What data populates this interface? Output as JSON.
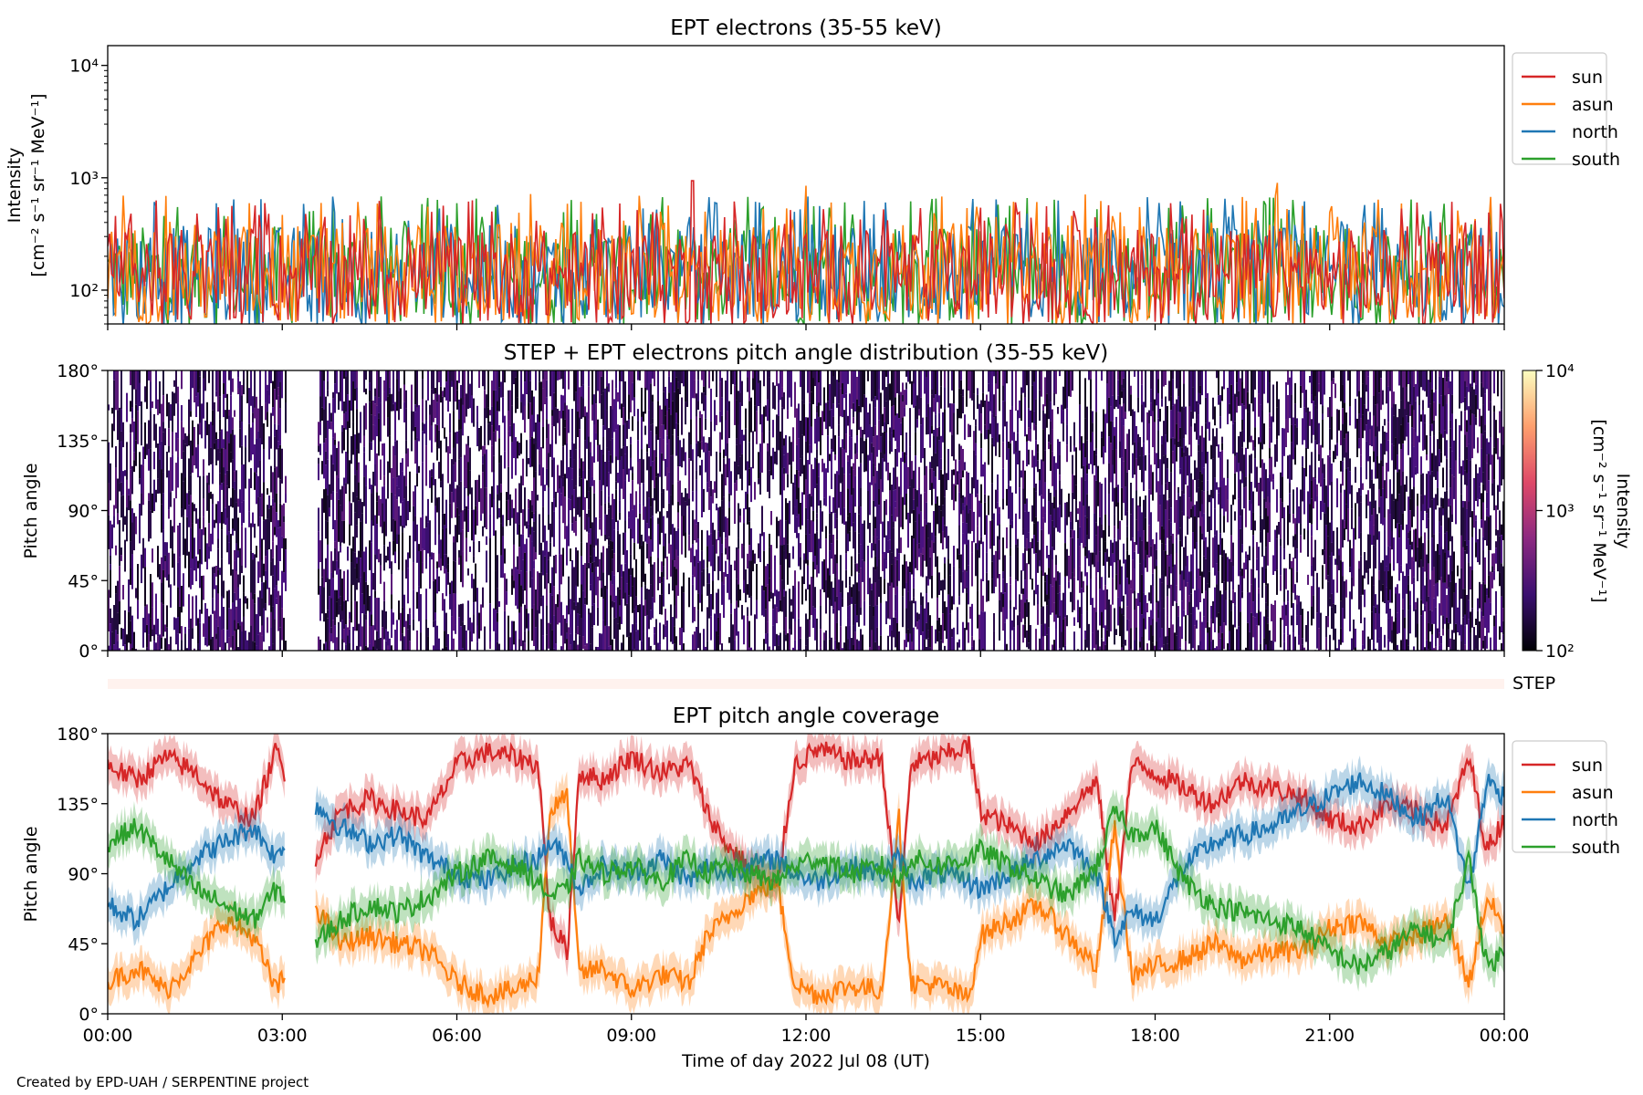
{
  "figure": {
    "credit": "Created by EPD-UAH / SERPENTINE project",
    "xlabel": "Time of day 2022 Jul 08 (UT)"
  },
  "chart_data": [
    {
      "type": "line",
      "title": "EPT electrons (35-55 keV)",
      "ylabel_line1": "Intensity",
      "ylabel_line2": "[cm⁻² s⁻¹ sr⁻¹ MeV⁻¹]",
      "yscale": "log",
      "ylim": [
        50,
        15000
      ],
      "yticks": [
        {
          "value": 100,
          "label": "10²"
        },
        {
          "value": 1000,
          "label": "10³"
        },
        {
          "value": 10000,
          "label": "10⁴"
        }
      ],
      "x_range_hours": [
        0,
        24
      ],
      "legend_position": "right, outside",
      "series": [
        {
          "name": "sun",
          "color": "#d62728",
          "typical": [
            80,
            350
          ],
          "spikes": [
            {
              "x": 10.05,
              "y": 940
            }
          ]
        },
        {
          "name": "asun",
          "color": "#ff7f0e",
          "typical": [
            80,
            400
          ],
          "spikes": [
            {
              "x": 12.0,
              "y": 850
            },
            {
              "x": 20.1,
              "y": 900
            }
          ]
        },
        {
          "name": "north",
          "color": "#1f77b4",
          "typical": [
            80,
            380
          ],
          "spikes": [
            {
              "x": 19.2,
              "y": 650
            }
          ]
        },
        {
          "name": "south",
          "color": "#2ca02c",
          "typical": [
            80,
            380
          ],
          "spikes": [
            {
              "x": 22.4,
              "y": 640
            }
          ]
        }
      ]
    },
    {
      "type": "heatmap",
      "title": "STEP + EPT electrons pitch angle distribution (35-55 keV)",
      "ylabel": "Pitch angle",
      "ylim": [
        0,
        180
      ],
      "yticks": [
        "0°",
        "45°",
        "90°",
        "135°",
        "180°"
      ],
      "colorbar": {
        "label": "Intensity",
        "units": "[cm⁻² s⁻¹ sr⁻¹ MeV⁻¹]",
        "scale": "log",
        "range": [
          100,
          10000
        ],
        "ticks": [
          "10²",
          "10³",
          "10⁴"
        ],
        "colormap": "inferno"
      },
      "data_gaps_hours": [
        [
          3.05,
          3.6
        ]
      ],
      "note": "most pixels dark purple, around 10² to 3·10²"
    },
    {
      "type": "bar",
      "label": "STEP",
      "note": "empty strip"
    },
    {
      "type": "line",
      "title": "EPT pitch angle coverage",
      "ylabel": "Pitch angle",
      "ylim": [
        0,
        180
      ],
      "yticks": [
        "0°",
        "45°",
        "90°",
        "135°",
        "180°"
      ],
      "xticks": [
        "00:00",
        "03:00",
        "06:00",
        "09:00",
        "12:00",
        "15:00",
        "18:00",
        "21:00",
        "00:00"
      ],
      "x_range_hours": [
        0,
        24
      ],
      "legend_position": "right, outside",
      "data_gaps_hours": [
        [
          3.05,
          3.55
        ]
      ],
      "series": [
        {
          "name": "sun",
          "color": "#d62728",
          "points": [
            [
              0,
              160
            ],
            [
              0.5,
              150
            ],
            [
              1,
              165
            ],
            [
              1.5,
              155
            ],
            [
              2,
              135
            ],
            [
              2.5,
              125
            ],
            [
              2.9,
              170
            ],
            [
              3.05,
              150
            ],
            [
              3.55,
              100
            ],
            [
              4,
              130
            ],
            [
              4.5,
              138
            ],
            [
              5,
              130
            ],
            [
              5.5,
              125
            ],
            [
              6,
              160
            ],
            [
              6.5,
              168
            ],
            [
              7,
              165
            ],
            [
              7.4,
              160
            ],
            [
              7.6,
              60
            ],
            [
              7.9,
              40
            ],
            [
              8.1,
              155
            ],
            [
              8.5,
              150
            ],
            [
              9,
              165
            ],
            [
              9.5,
              155
            ],
            [
              10,
              160
            ],
            [
              10.3,
              130
            ],
            [
              10.6,
              110
            ],
            [
              11,
              95
            ],
            [
              11.5,
              80
            ],
            [
              11.8,
              160
            ],
            [
              12.2,
              170
            ],
            [
              12.8,
              162
            ],
            [
              13.3,
              165
            ],
            [
              13.6,
              55
            ],
            [
              13.8,
              160
            ],
            [
              14.3,
              165
            ],
            [
              14.8,
              172
            ],
            [
              15,
              130
            ],
            [
              15.5,
              120
            ],
            [
              16,
              110
            ],
            [
              16.5,
              130
            ],
            [
              17,
              150
            ],
            [
              17.3,
              60
            ],
            [
              17.6,
              160
            ],
            [
              18,
              155
            ],
            [
              18.5,
              145
            ],
            [
              19,
              135
            ],
            [
              19.5,
              150
            ],
            [
              20,
              145
            ],
            [
              20.5,
              140
            ],
            [
              21,
              125
            ],
            [
              21.5,
              120
            ],
            [
              22,
              135
            ],
            [
              22.5,
              130
            ],
            [
              23,
              120
            ],
            [
              23.4,
              165
            ],
            [
              23.7,
              105
            ],
            [
              24,
              125
            ]
          ]
        },
        {
          "name": "asun",
          "color": "#ff7f0e",
          "points": [
            [
              0,
              20
            ],
            [
              0.5,
              30
            ],
            [
              1,
              15
            ],
            [
              1.5,
              35
            ],
            [
              2,
              60
            ],
            [
              2.5,
              50
            ],
            [
              2.9,
              15
            ],
            [
              3.05,
              25
            ],
            [
              3.55,
              70
            ],
            [
              4,
              45
            ],
            [
              4.5,
              50
            ],
            [
              5,
              45
            ],
            [
              5.5,
              40
            ],
            [
              6,
              20
            ],
            [
              6.5,
              12
            ],
            [
              7,
              15
            ],
            [
              7.4,
              25
            ],
            [
              7.6,
              130
            ],
            [
              7.9,
              140
            ],
            [
              8.1,
              25
            ],
            [
              8.5,
              30
            ],
            [
              9,
              15
            ],
            [
              9.5,
              25
            ],
            [
              10,
              20
            ],
            [
              10.3,
              50
            ],
            [
              10.6,
              60
            ],
            [
              11,
              75
            ],
            [
              11.5,
              85
            ],
            [
              11.8,
              20
            ],
            [
              12.2,
              12
            ],
            [
              12.8,
              18
            ],
            [
              13.3,
              15
            ],
            [
              13.6,
              125
            ],
            [
              13.8,
              20
            ],
            [
              14.3,
              18
            ],
            [
              14.8,
              10
            ],
            [
              15,
              50
            ],
            [
              15.5,
              60
            ],
            [
              16,
              70
            ],
            [
              16.5,
              50
            ],
            [
              17,
              30
            ],
            [
              17.3,
              120
            ],
            [
              17.6,
              25
            ],
            [
              18,
              30
            ],
            [
              18.5,
              35
            ],
            [
              19,
              45
            ],
            [
              19.5,
              35
            ],
            [
              20,
              40
            ],
            [
              20.5,
              40
            ],
            [
              21,
              55
            ],
            [
              21.5,
              60
            ],
            [
              22,
              45
            ],
            [
              22.5,
              50
            ],
            [
              23,
              60
            ],
            [
              23.4,
              20
            ],
            [
              23.7,
              75
            ],
            [
              24,
              55
            ]
          ]
        },
        {
          "name": "north",
          "color": "#1f77b4",
          "points": [
            [
              0,
              70
            ],
            [
              0.5,
              60
            ],
            [
              1,
              80
            ],
            [
              1.5,
              100
            ],
            [
              2,
              110
            ],
            [
              2.5,
              120
            ],
            [
              2.9,
              100
            ],
            [
              3.05,
              110
            ],
            [
              3.55,
              135
            ],
            [
              4,
              120
            ],
            [
              4.5,
              110
            ],
            [
              5,
              115
            ],
            [
              5.5,
              100
            ],
            [
              6,
              90
            ],
            [
              6.5,
              85
            ],
            [
              7,
              95
            ],
            [
              7.4,
              100
            ],
            [
              7.6,
              110
            ],
            [
              7.9,
              100
            ],
            [
              8.1,
              80
            ],
            [
              8.5,
              95
            ],
            [
              9,
              90
            ],
            [
              9.5,
              100
            ],
            [
              10,
              85
            ],
            [
              10.3,
              95
            ],
            [
              10.6,
              90
            ],
            [
              11,
              95
            ],
            [
              11.5,
              100
            ],
            [
              11.8,
              90
            ],
            [
              12.2,
              85
            ],
            [
              12.8,
              95
            ],
            [
              13.3,
              90
            ],
            [
              13.6,
              100
            ],
            [
              13.8,
              85
            ],
            [
              14.3,
              90
            ],
            [
              14.8,
              85
            ],
            [
              15,
              80
            ],
            [
              15.5,
              90
            ],
            [
              16,
              100
            ],
            [
              16.5,
              110
            ],
            [
              17,
              90
            ],
            [
              17.3,
              50
            ],
            [
              17.6,
              65
            ],
            [
              18,
              60
            ],
            [
              18.5,
              95
            ],
            [
              19,
              110
            ],
            [
              19.5,
              115
            ],
            [
              20,
              120
            ],
            [
              20.5,
              130
            ],
            [
              21,
              140
            ],
            [
              21.5,
              150
            ],
            [
              22,
              140
            ],
            [
              22.5,
              125
            ],
            [
              23,
              140
            ],
            [
              23.4,
              80
            ],
            [
              23.7,
              150
            ],
            [
              24,
              140
            ]
          ]
        },
        {
          "name": "south",
          "color": "#2ca02c",
          "points": [
            [
              0,
              110
            ],
            [
              0.5,
              120
            ],
            [
              1,
              100
            ],
            [
              1.5,
              80
            ],
            [
              2,
              70
            ],
            [
              2.5,
              60
            ],
            [
              2.9,
              80
            ],
            [
              3.05,
              75
            ],
            [
              3.55,
              45
            ],
            [
              4,
              60
            ],
            [
              4.5,
              70
            ],
            [
              5,
              65
            ],
            [
              5.5,
              75
            ],
            [
              6,
              90
            ],
            [
              6.5,
              100
            ],
            [
              7,
              95
            ],
            [
              7.4,
              85
            ],
            [
              7.6,
              75
            ],
            [
              7.9,
              80
            ],
            [
              8.1,
              100
            ],
            [
              8.5,
              90
            ],
            [
              9,
              95
            ],
            [
              9.5,
              85
            ],
            [
              10,
              100
            ],
            [
              10.3,
              90
            ],
            [
              10.6,
              95
            ],
            [
              11,
              90
            ],
            [
              11.5,
              85
            ],
            [
              11.8,
              95
            ],
            [
              12.2,
              100
            ],
            [
              12.8,
              90
            ],
            [
              13.3,
              95
            ],
            [
              13.6,
              85
            ],
            [
              13.8,
              100
            ],
            [
              14.3,
              95
            ],
            [
              14.8,
              100
            ],
            [
              15,
              105
            ],
            [
              15.5,
              95
            ],
            [
              16,
              85
            ],
            [
              16.5,
              75
            ],
            [
              17,
              95
            ],
            [
              17.3,
              130
            ],
            [
              17.6,
              115
            ],
            [
              18,
              120
            ],
            [
              18.5,
              85
            ],
            [
              19,
              70
            ],
            [
              19.5,
              65
            ],
            [
              20,
              60
            ],
            [
              20.5,
              55
            ],
            [
              21,
              40
            ],
            [
              21.5,
              30
            ],
            [
              22,
              40
            ],
            [
              22.5,
              55
            ],
            [
              23,
              45
            ],
            [
              23.4,
              100
            ],
            [
              23.7,
              30
            ],
            [
              24,
              40
            ]
          ]
        }
      ]
    }
  ]
}
